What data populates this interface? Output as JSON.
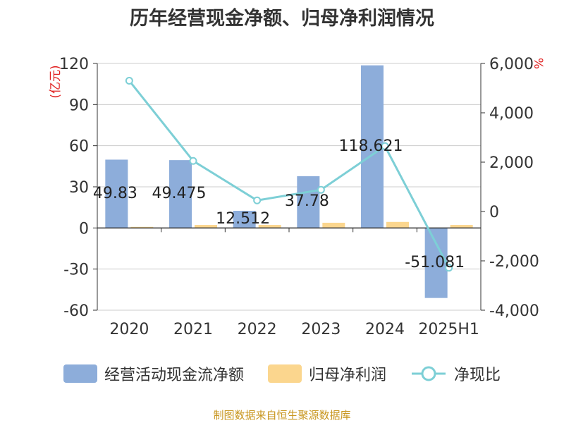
{
  "title": "历年经营现金净额、归母净利润情况",
  "source_text": "制图数据来自恒生聚源数据库",
  "colors": {
    "bar_cash": "#8dadda",
    "bar_profit": "#fbd68e",
    "line": "#7dcfd6",
    "axis_text": "#333333",
    "unit_text": "#e02020",
    "grid": "#cccccc"
  },
  "chart_data": {
    "type": "bar",
    "categories": [
      "2020",
      "2021",
      "2022",
      "2023",
      "2024",
      "2025H1"
    ],
    "y_left": {
      "unit": "(亿元)",
      "min": -60,
      "max": 120,
      "ticks": [
        120,
        90,
        60,
        30,
        0,
        -30,
        -60
      ],
      "tick_labels": [
        "120",
        "90",
        "60",
        "30",
        "0",
        "-30",
        "-60"
      ]
    },
    "y_right": {
      "unit": "%",
      "min": -4000,
      "max": 6000,
      "ticks": [
        6000,
        4000,
        2000,
        0,
        -2000,
        -4000
      ],
      "tick_labels": [
        "6,000",
        "4,000",
        "2,000",
        "0",
        "-2,000",
        "-4,000"
      ]
    },
    "grid": true,
    "legend_position": "bottom",
    "series": [
      {
        "name": "经营活动现金流净额",
        "kind": "bar",
        "axis": "left",
        "values": [
          49.83,
          49.475,
          12.512,
          37.78,
          118.621,
          -51.081
        ],
        "labels": [
          "49.83",
          "49.475",
          "12.512",
          "37.78",
          "118.621",
          "-51.081"
        ]
      },
      {
        "name": "归母净利润",
        "kind": "bar",
        "axis": "left",
        "values": [
          0.8,
          2.2,
          2.2,
          3.8,
          4.4,
          2.2
        ]
      },
      {
        "name": "净现比",
        "kind": "line",
        "axis": "right",
        "values": [
          5300,
          2050,
          450,
          880,
          2650,
          -2280
        ]
      }
    ]
  }
}
